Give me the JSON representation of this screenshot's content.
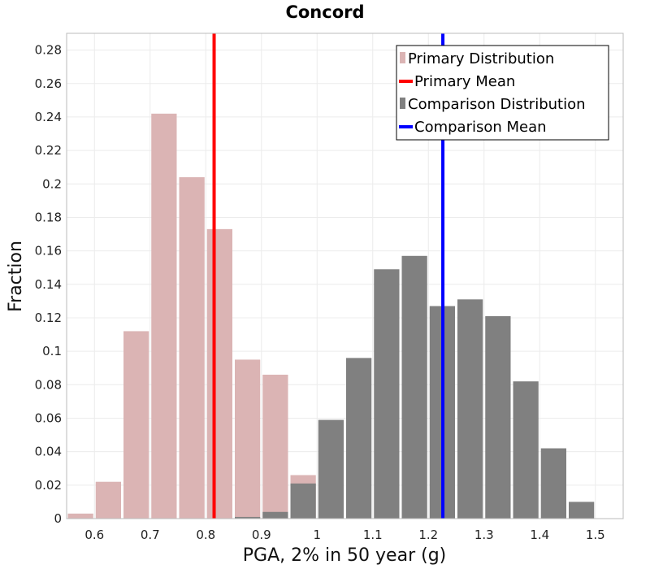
{
  "chart_data": {
    "type": "bar",
    "title": "Concord",
    "xlabel": "PGA, 2% in 50 year (g)",
    "ylabel": "Fraction",
    "xlim": [
      0.55,
      1.55
    ],
    "ylim": [
      0,
      0.29
    ],
    "x_ticks": [
      "0.6",
      "0.7",
      "0.8",
      "0.9",
      "1",
      "1.1",
      "1.2",
      "1.3",
      "1.4",
      "1.5"
    ],
    "y_ticks": [
      "0",
      "0.02",
      "0.04",
      "0.06",
      "0.08",
      "0.1",
      "0.12",
      "0.14",
      "0.16",
      "0.18",
      "0.2",
      "0.22",
      "0.24",
      "0.26",
      "0.28"
    ],
    "bin_width": 0.05,
    "grid": true,
    "legend_position": "top-right",
    "series": [
      {
        "name": "Primary Distribution",
        "kind": "histogram",
        "color": "#dbb4b4",
        "bins": [
          {
            "x": 0.575,
            "y": 0.003
          },
          {
            "x": 0.625,
            "y": 0.022
          },
          {
            "x": 0.675,
            "y": 0.112
          },
          {
            "x": 0.725,
            "y": 0.242
          },
          {
            "x": 0.775,
            "y": 0.204
          },
          {
            "x": 0.825,
            "y": 0.173
          },
          {
            "x": 0.875,
            "y": 0.095
          },
          {
            "x": 0.925,
            "y": 0.086
          },
          {
            "x": 0.975,
            "y": 0.026
          }
        ]
      },
      {
        "name": "Comparison Distribution",
        "kind": "histogram",
        "color": "#808080",
        "bins": [
          {
            "x": 0.875,
            "y": 0.001
          },
          {
            "x": 0.925,
            "y": 0.004
          },
          {
            "x": 0.975,
            "y": 0.021
          },
          {
            "x": 1.025,
            "y": 0.059
          },
          {
            "x": 1.075,
            "y": 0.096
          },
          {
            "x": 1.125,
            "y": 0.149
          },
          {
            "x": 1.175,
            "y": 0.157
          },
          {
            "x": 1.225,
            "y": 0.127
          },
          {
            "x": 1.275,
            "y": 0.131
          },
          {
            "x": 1.325,
            "y": 0.121
          },
          {
            "x": 1.375,
            "y": 0.082
          },
          {
            "x": 1.425,
            "y": 0.042
          },
          {
            "x": 1.475,
            "y": 0.01
          }
        ]
      },
      {
        "name": "Primary Mean",
        "kind": "vline",
        "color": "#ff0000",
        "x": 0.815
      },
      {
        "name": "Comparison Mean",
        "kind": "vline",
        "color": "#0000ff",
        "x": 1.226
      }
    ],
    "legend": [
      {
        "label": "Primary Distribution",
        "symbol": "box",
        "color": "#dbb4b4"
      },
      {
        "label": "Primary Mean",
        "symbol": "line",
        "color": "#ff0000"
      },
      {
        "label": "Comparison Distribution",
        "symbol": "box",
        "color": "#808080"
      },
      {
        "label": "Comparison Mean",
        "symbol": "line",
        "color": "#0000ff"
      }
    ]
  }
}
